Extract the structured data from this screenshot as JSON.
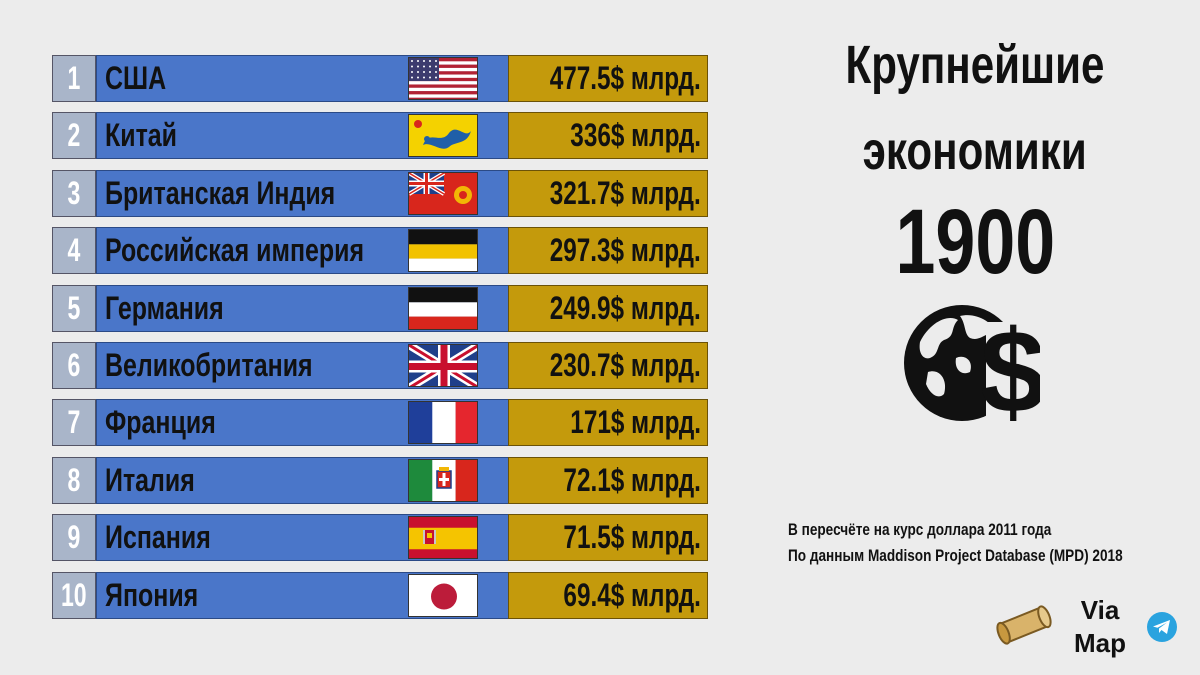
{
  "title": {
    "line1": "Крупнейшие",
    "line2": "экономики",
    "year": "1900"
  },
  "notes": {
    "line1": "В пересчёте на курс доллара 2011 года",
    "line2": "По данным Maddison Project Database (MPD) 2018"
  },
  "brand": {
    "line1": "Via",
    "line2": "Map"
  },
  "icons": [
    "globe-dollar-icon",
    "scroll-icon",
    "telegram-icon"
  ],
  "colors": {
    "rank_bg": "#a9b5c9",
    "name_bg": "#4a76c9",
    "value_bg": "#c49a0c",
    "background": "#ececec"
  },
  "chart_data": {
    "type": "table",
    "unit": "$ млрд.",
    "rows": [
      {
        "rank": "1",
        "country": "США",
        "value": 477.5,
        "label": "477.5$ млрд.",
        "flag": "usa-flag"
      },
      {
        "rank": "2",
        "country": "Китай",
        "value": 336,
        "label": "336$ млрд.",
        "flag": "qing-china-flag"
      },
      {
        "rank": "3",
        "country": "Британская Индия",
        "value": 321.7,
        "label": "321.7$ млрд.",
        "flag": "british-india-flag"
      },
      {
        "rank": "4",
        "country": "Российская империя",
        "value": 297.3,
        "label": "297.3$ млрд.",
        "flag": "russian-empire-flag"
      },
      {
        "rank": "5",
        "country": "Германия",
        "value": 249.9,
        "label": "249.9$ млрд.",
        "flag": "german-empire-flag"
      },
      {
        "rank": "6",
        "country": "Великобритания",
        "value": 230.7,
        "label": "230.7$ млрд.",
        "flag": "uk-flag"
      },
      {
        "rank": "7",
        "country": "Франция",
        "value": 171,
        "label": "171$ млрд.",
        "flag": "france-flag"
      },
      {
        "rank": "8",
        "country": "Италия",
        "value": 72.1,
        "label": "72.1$ млрд.",
        "flag": "kingdom-italy-flag"
      },
      {
        "rank": "9",
        "country": "Испания",
        "value": 71.5,
        "label": "71.5$ млрд.",
        "flag": "spain-flag"
      },
      {
        "rank": "10",
        "country": "Япония",
        "value": 69.4,
        "label": "69.4$ млрд.",
        "flag": "japan-flag"
      }
    ]
  }
}
